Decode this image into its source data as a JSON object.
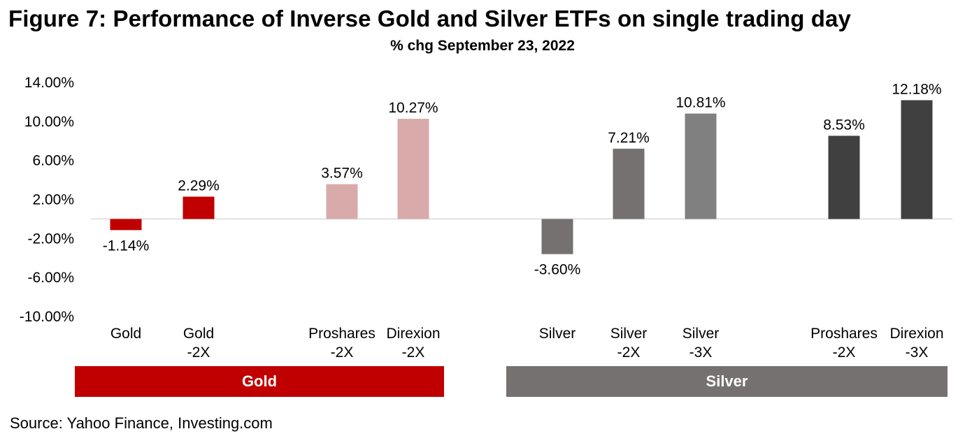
{
  "title": "Figure 7: Performance of Inverse Gold and Silver ETFs on single trading day",
  "subtitle": "% chg September 23, 2022",
  "source": "Source: Yahoo Finance, Investing.com",
  "chart_data": {
    "type": "bar",
    "ylim": [
      -10,
      14
    ],
    "yticks": [
      14,
      10,
      6,
      2,
      -2,
      -6,
      -10
    ],
    "ytick_labels": [
      "14.00%",
      "10.00%",
      "6.00%",
      "2.00%",
      "-2.00%",
      "-6.00%",
      "-10.00%"
    ],
    "categories": [
      {
        "line1": "Gold",
        "line2": ""
      },
      {
        "line1": "Gold",
        "line2": "-2X"
      },
      {
        "line1": "Proshares",
        "line2": "-2X"
      },
      {
        "line1": "Direxion",
        "line2": "-2X"
      },
      {
        "line1": "Silver",
        "line2": ""
      },
      {
        "line1": "Silver",
        "line2": "-2X"
      },
      {
        "line1": "Silver",
        "line2": "-3X"
      },
      {
        "line1": "Proshares",
        "line2": "-2X"
      },
      {
        "line1": "Direxion",
        "line2": "-3X"
      }
    ],
    "values": [
      -1.14,
      2.29,
      3.57,
      10.27,
      -3.6,
      7.21,
      10.81,
      8.53,
      12.18
    ],
    "data_labels": [
      "-1.14%",
      "2.29%",
      "3.57%",
      "10.27%",
      "-3.60%",
      "7.21%",
      "10.81%",
      "8.53%",
      "12.18%"
    ],
    "colors": [
      "#c00000",
      "#c00000",
      "#d9aaaa",
      "#d9aaaa",
      "#767171",
      "#767171",
      "#808080",
      "#404040",
      "#404040"
    ],
    "groups": [
      {
        "label": "Gold",
        "color": "#c00000",
        "first": 0,
        "last": 3
      },
      {
        "label": "Silver",
        "color": "#767171",
        "first": 4,
        "last": 8
      }
    ],
    "grid": false
  }
}
